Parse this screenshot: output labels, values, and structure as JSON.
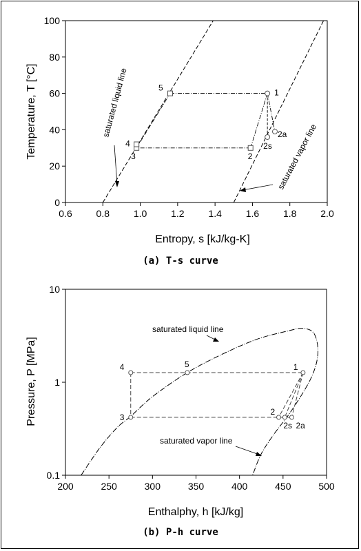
{
  "chart_data": [
    {
      "type": "line",
      "caption": "(a) T-s curve",
      "xlabel": "Entropy, s [kJ/kg-K]",
      "ylabel": "Temperature, T [°C]",
      "xlim": [
        0.6,
        2.0
      ],
      "ylim": [
        0,
        100
      ],
      "xticks": [
        "0.6",
        "0.8",
        "1.0",
        "1.2",
        "1.4",
        "1.6",
        "1.8",
        "2.0"
      ],
      "yticks": [
        "0",
        "20",
        "40",
        "60",
        "80",
        "100"
      ],
      "saturation_lines": [
        {
          "name": "saturated liquid line",
          "x": [
            0.8,
            1.39
          ],
          "y": [
            0,
            100
          ]
        },
        {
          "name": "saturated vapor line",
          "x": [
            1.5,
            1.98
          ],
          "y": [
            0,
            100
          ]
        }
      ],
      "points": [
        {
          "label": "1",
          "s": 1.68,
          "T": 60
        },
        {
          "label": "2",
          "s": 1.59,
          "T": 30
        },
        {
          "label": "2s",
          "s": 1.68,
          "T": 36
        },
        {
          "label": "2a",
          "s": 1.72,
          "T": 39
        },
        {
          "label": "3",
          "s": 0.98,
          "T": 30
        },
        {
          "label": "4",
          "s": 0.98,
          "T": 32
        },
        {
          "label": "5",
          "s": 1.16,
          "T": 60
        }
      ],
      "annotations": [
        "saturated liquid line",
        "saturated vapor line"
      ]
    },
    {
      "type": "line",
      "caption": "(b) P-h curve",
      "xlabel": "Enthalphy, h [kJ/kg]",
      "ylabel": "Pressure, P [MPa]",
      "xlim": [
        200,
        500
      ],
      "ylim": [
        0.1,
        10
      ],
      "yscale": "log",
      "xticks": [
        "200",
        "250",
        "300",
        "350",
        "400",
        "450",
        "500"
      ],
      "yticks": [
        "0.1",
        "1",
        "10"
      ],
      "saturation_dome": {
        "h": [
          218,
          240,
          260,
          275,
          300,
          340,
          380,
          420,
          455,
          473,
          486,
          490,
          482,
          460,
          440,
          425,
          415
        ],
        "P": [
          0.1,
          0.2,
          0.33,
          0.43,
          0.7,
          1.27,
          2.0,
          2.9,
          3.55,
          3.8,
          3.3,
          2.0,
          1.1,
          0.5,
          0.28,
          0.17,
          0.1
        ]
      },
      "points": [
        {
          "label": "1",
          "h": 473,
          "P": 1.27
        },
        {
          "label": "2",
          "h": 445,
          "P": 0.42
        },
        {
          "label": "2s",
          "h": 452,
          "P": 0.42
        },
        {
          "label": "2a",
          "h": 460,
          "P": 0.42
        },
        {
          "label": "3",
          "h": 275,
          "P": 0.42
        },
        {
          "label": "4",
          "h": 275,
          "P": 1.27
        },
        {
          "label": "5",
          "h": 340,
          "P": 1.27
        }
      ],
      "annotations": [
        "saturated liquid line",
        "saturated vapor line"
      ]
    }
  ]
}
